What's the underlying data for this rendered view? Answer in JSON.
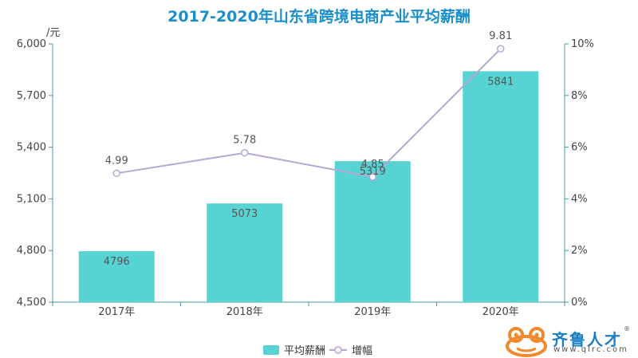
{
  "chart_data": {
    "type": "bar",
    "title": "2017-2020年山东省跨境电商产业平均薪酬",
    "categories": [
      "2017年",
      "2018年",
      "2019年",
      "2020年"
    ],
    "series": [
      {
        "name": "平均薪酬",
        "type": "bar",
        "axis": "left",
        "values": [
          4796,
          5073,
          5319,
          5841
        ],
        "color": "#58d3d3"
      },
      {
        "name": "增幅",
        "type": "line",
        "axis": "right",
        "values": [
          4.99,
          5.78,
          4.85,
          9.81
        ],
        "color": "#b8a6d6"
      }
    ],
    "y_left": {
      "unit_label": "/元",
      "ylim": [
        4500,
        6000
      ],
      "ticks": [
        4500,
        4800,
        5100,
        5400,
        5700,
        6000
      ],
      "tick_labels": [
        "4,500",
        "4,800",
        "5,100",
        "5,400",
        "5,700",
        "6,000"
      ]
    },
    "y_right": {
      "ylim": [
        0,
        10
      ],
      "ticks": [
        0,
        2,
        4,
        6,
        8,
        10
      ],
      "tick_labels": [
        "0%",
        "2%",
        "4%",
        "6%",
        "8%",
        "10%"
      ]
    },
    "grid": false,
    "legend": "bottom-center",
    "axis_color": "#4a9aa6"
  },
  "logo": {
    "name": "齐鲁人才",
    "url": "www.qlrc.com",
    "reg": "®",
    "icon": "frog-icon",
    "color": "#f08a2c"
  }
}
